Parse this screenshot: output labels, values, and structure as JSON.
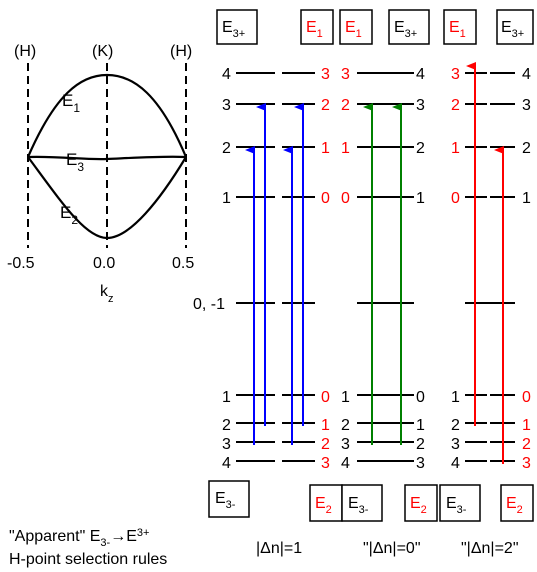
{
  "band_panel": {
    "point_labels": [
      "(H)",
      "(K)",
      "(H)"
    ],
    "tick_labels": [
      "-0.5",
      "0.0",
      "0.5"
    ],
    "axis_label_main": "k",
    "axis_label_sub": "z",
    "band_E1": {
      "main": "E",
      "sub": "1"
    },
    "band_E3": {
      "main": "E",
      "sub": "3"
    },
    "band_E2": {
      "main": "E",
      "sub": "2"
    }
  },
  "box_top": {
    "E3p": {
      "main": "E",
      "sub": "3+"
    },
    "E1": {
      "main": "E",
      "sub": "1"
    }
  },
  "box_bottom": {
    "E3m": {
      "main": "E",
      "sub": "3-"
    },
    "E2": {
      "main": "E",
      "sub": "2"
    }
  },
  "levels_upper": [
    "4",
    "3",
    "2",
    "1"
  ],
  "levels_lower": [
    "1",
    "2",
    "3",
    "4"
  ],
  "middle_level_label": "0, -1",
  "captions": {
    "rule_quote": "\"Apparent\" E",
    "rule_sub_from": "3-",
    "rule_arrow": "→",
    "rule_to": "E",
    "rule_sub_to": "3+",
    "rule_line2": "H-point selection rules",
    "col1": "|Δn|=1",
    "col2": "\"|Δn|=0\"",
    "col3": "\"|Δn|=2\""
  },
  "colors": {
    "black": "#000000",
    "red": "#ff0000",
    "blue": "#0000ff",
    "green": "#008000"
  }
}
